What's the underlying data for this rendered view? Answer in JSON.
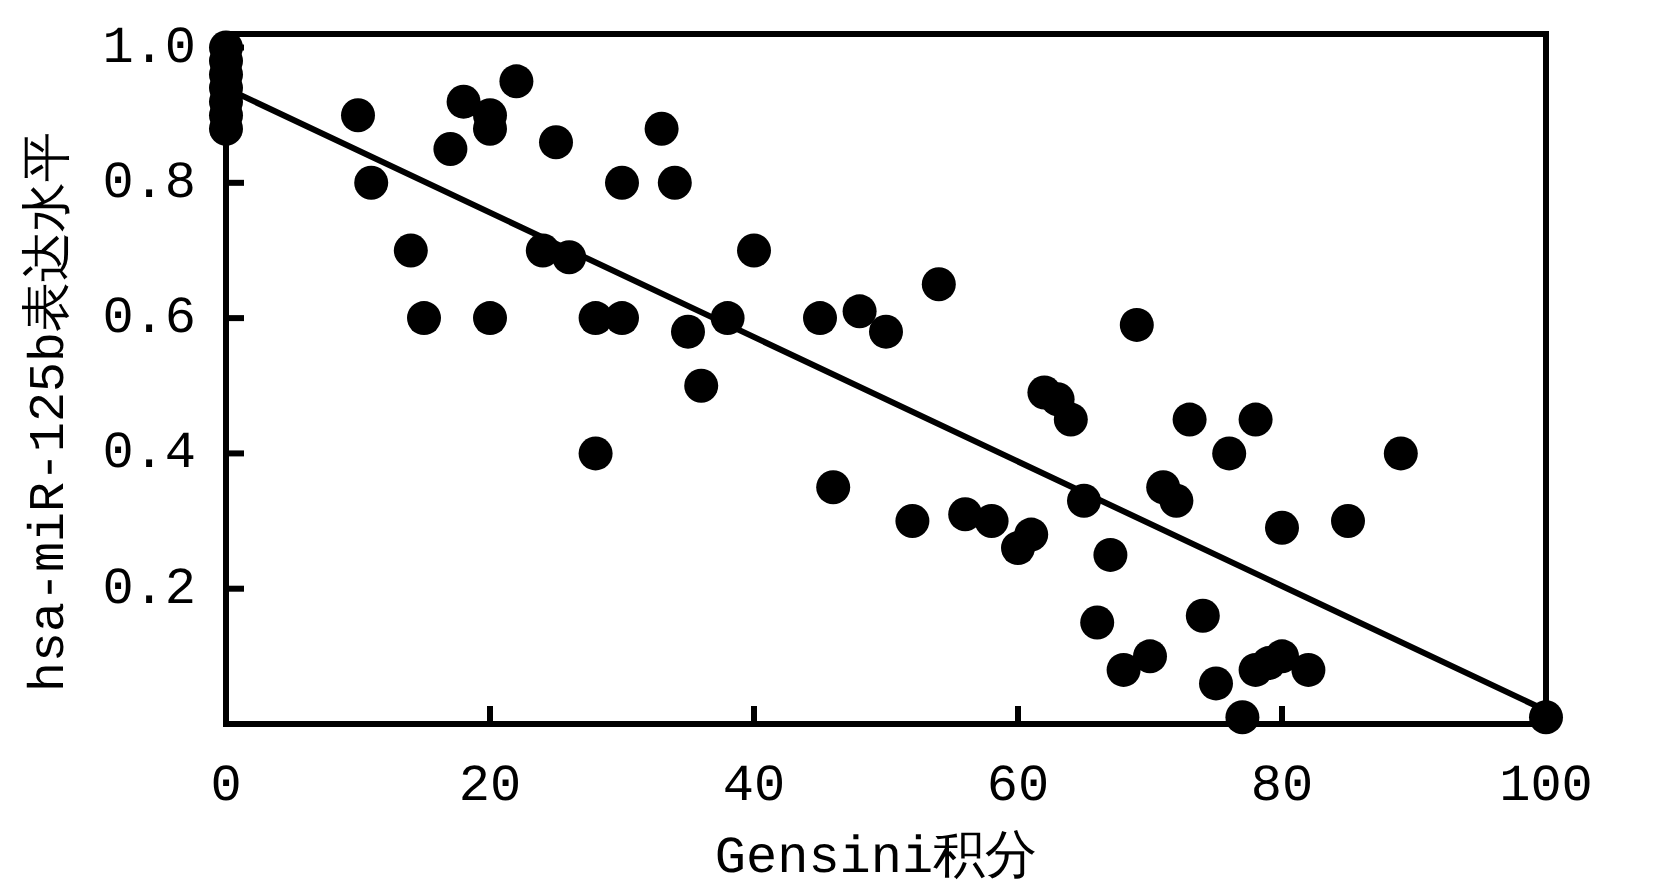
{
  "chart_data": {
    "type": "scatter",
    "xlabel": "Gensini积分",
    "ylabel": "hsa-miR-125b表达水平",
    "xlim": [
      0,
      100
    ],
    "ylim": [
      0,
      1.02
    ],
    "xticks": [
      0,
      20,
      40,
      60,
      80,
      100
    ],
    "yticks": [
      0.2,
      0.4,
      0.6,
      0.8,
      {
        "value": 1,
        "label": "1.0"
      }
    ],
    "marker": "circle",
    "series": [
      {
        "color": "#000000",
        "x": [
          0,
          0,
          0,
          0,
          0,
          0,
          0,
          10,
          11,
          14,
          15,
          17,
          18,
          20,
          20,
          20,
          22,
          24,
          25,
          26,
          28,
          28,
          30,
          30,
          33,
          34,
          35,
          36,
          38,
          40,
          45,
          46,
          48,
          50,
          52,
          54,
          56,
          58,
          60,
          61,
          62,
          63,
          64,
          65,
          66,
          67,
          68,
          69,
          70,
          71,
          72,
          73,
          74,
          75,
          76,
          77,
          78,
          78,
          79,
          80,
          80,
          82,
          85,
          89,
          100
        ],
        "values": [
          1.0,
          0.98,
          0.96,
          0.94,
          0.92,
          0.9,
          0.88,
          0.9,
          0.8,
          0.7,
          0.6,
          0.85,
          0.92,
          0.9,
          0.88,
          0.6,
          0.95,
          0.7,
          0.86,
          0.69,
          0.6,
          0.4,
          0.8,
          0.6,
          0.88,
          0.8,
          0.58,
          0.5,
          0.6,
          0.7,
          0.6,
          0.35,
          0.61,
          0.58,
          0.3,
          0.65,
          0.31,
          0.3,
          0.26,
          0.28,
          0.49,
          0.48,
          0.45,
          0.33,
          0.15,
          0.25,
          0.08,
          0.59,
          0.1,
          0.35,
          0.33,
          0.45,
          0.16,
          0.06,
          0.4,
          0.01,
          0.08,
          0.45,
          0.09,
          0.1,
          0.29,
          0.08,
          0.3,
          0.4,
          0.01
        ]
      },
      {
        "type": "line",
        "color": "#000000",
        "marker": "none",
        "x": [
          0,
          100
        ],
        "values": [
          0.94,
          0.02
        ]
      }
    ]
  }
}
